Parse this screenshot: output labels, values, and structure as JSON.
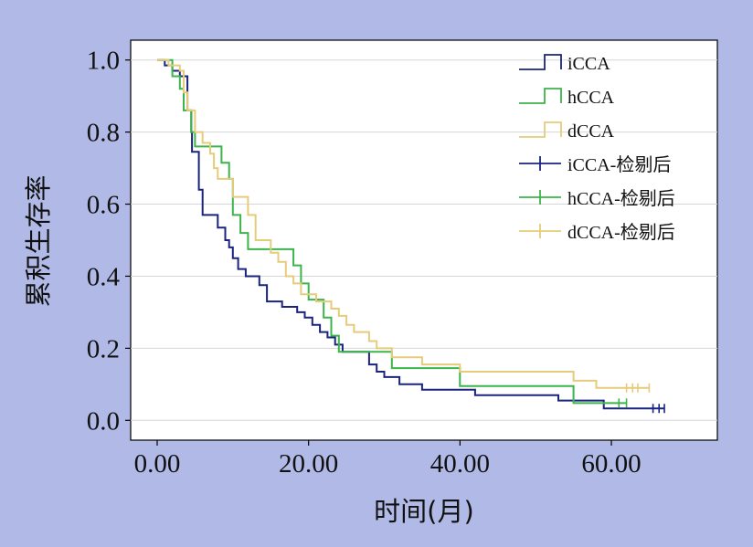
{
  "chart_data": {
    "type": "line",
    "subtype": "kaplan-meier step",
    "title": "",
    "xlabel": "时间(月)",
    "ylabel": "累积生存率",
    "xlim": [
      -3.5,
      74
    ],
    "ylim": [
      -0.055,
      1.055
    ],
    "xticks": [
      "0.00",
      "20.00",
      "40.00",
      "60.00"
    ],
    "xtick_values": [
      0,
      20,
      40,
      60
    ],
    "yticks": [
      "0.0",
      "0.2",
      "0.4",
      "0.6",
      "0.8",
      "1.0"
    ],
    "ytick_values": [
      0,
      0.2,
      0.4,
      0.6,
      0.8,
      1.0
    ],
    "grid": "horizontal",
    "legend_position": "top-right",
    "series": [
      {
        "name": "iCCA",
        "color": "#1a237e",
        "steps": [
          [
            0,
            1.0
          ],
          [
            1,
            1.0
          ],
          [
            1,
            0.985
          ],
          [
            2,
            0.985
          ],
          [
            2,
            0.97
          ],
          [
            3,
            0.97
          ],
          [
            3,
            0.955
          ],
          [
            4,
            0.955
          ],
          [
            4,
            0.86
          ],
          [
            4.5,
            0.86
          ],
          [
            4.5,
            0.8
          ],
          [
            4.6,
            0.8
          ],
          [
            4.6,
            0.745
          ],
          [
            5.5,
            0.745
          ],
          [
            5.5,
            0.64
          ],
          [
            6,
            0.64
          ],
          [
            6,
            0.57
          ],
          [
            8,
            0.57
          ],
          [
            8,
            0.535
          ],
          [
            9,
            0.535
          ],
          [
            9,
            0.5
          ],
          [
            9.5,
            0.5
          ],
          [
            9.5,
            0.48
          ],
          [
            10,
            0.48
          ],
          [
            10,
            0.45
          ],
          [
            10.7,
            0.45
          ],
          [
            10.7,
            0.42
          ],
          [
            11.7,
            0.42
          ],
          [
            11.7,
            0.4
          ],
          [
            13.5,
            0.4
          ],
          [
            13.5,
            0.375
          ],
          [
            14.5,
            0.375
          ],
          [
            14.5,
            0.33
          ],
          [
            16.5,
            0.33
          ],
          [
            16.5,
            0.315
          ],
          [
            18.5,
            0.315
          ],
          [
            18.5,
            0.3
          ],
          [
            19.5,
            0.3
          ],
          [
            19.5,
            0.285
          ],
          [
            20.5,
            0.285
          ],
          [
            20.5,
            0.265
          ],
          [
            21.5,
            0.265
          ],
          [
            21.5,
            0.245
          ],
          [
            22.5,
            0.245
          ],
          [
            22.5,
            0.23
          ],
          [
            23.5,
            0.23
          ],
          [
            23.5,
            0.21
          ],
          [
            24.5,
            0.21
          ],
          [
            24.5,
            0.19
          ],
          [
            28,
            0.19
          ],
          [
            28,
            0.155
          ],
          [
            29,
            0.155
          ],
          [
            29,
            0.135
          ],
          [
            30,
            0.135
          ],
          [
            30,
            0.12
          ],
          [
            32,
            0.12
          ],
          [
            32,
            0.1
          ],
          [
            35,
            0.1
          ],
          [
            35,
            0.085
          ],
          [
            42,
            0.085
          ],
          [
            42,
            0.07
          ],
          [
            53,
            0.07
          ],
          [
            53,
            0.055
          ],
          [
            59,
            0.055
          ],
          [
            59,
            0.033
          ],
          [
            67,
            0.033
          ]
        ],
        "censored": [
          [
            65.5,
            0.033
          ],
          [
            66.3,
            0.033
          ],
          [
            67,
            0.033
          ]
        ]
      },
      {
        "name": "hCCA",
        "color": "#3cb44b",
        "steps": [
          [
            0,
            1.0
          ],
          [
            2,
            1.0
          ],
          [
            2,
            0.955
          ],
          [
            3,
            0.955
          ],
          [
            3,
            0.92
          ],
          [
            3.5,
            0.92
          ],
          [
            3.5,
            0.86
          ],
          [
            4.5,
            0.86
          ],
          [
            4.5,
            0.8
          ],
          [
            5,
            0.8
          ],
          [
            5,
            0.76
          ],
          [
            8.5,
            0.76
          ],
          [
            8.5,
            0.715
          ],
          [
            9.5,
            0.715
          ],
          [
            9.5,
            0.67
          ],
          [
            10,
            0.67
          ],
          [
            10,
            0.57
          ],
          [
            11,
            0.57
          ],
          [
            11,
            0.52
          ],
          [
            12,
            0.52
          ],
          [
            12,
            0.475
          ],
          [
            18,
            0.475
          ],
          [
            18,
            0.43
          ],
          [
            19,
            0.43
          ],
          [
            19,
            0.38
          ],
          [
            20,
            0.38
          ],
          [
            20,
            0.335
          ],
          [
            22,
            0.335
          ],
          [
            22,
            0.285
          ],
          [
            23,
            0.285
          ],
          [
            23,
            0.235
          ],
          [
            24,
            0.235
          ],
          [
            24,
            0.19
          ],
          [
            31,
            0.19
          ],
          [
            31,
            0.145
          ],
          [
            40,
            0.145
          ],
          [
            40,
            0.095
          ],
          [
            55,
            0.095
          ],
          [
            55,
            0.048
          ],
          [
            62,
            0.048
          ]
        ],
        "censored": [
          [
            61,
            0.048
          ],
          [
            62,
            0.048
          ]
        ]
      },
      {
        "name": "dCCA",
        "color": "#e6cc7a",
        "steps": [
          [
            0,
            1.0
          ],
          [
            1.5,
            1.0
          ],
          [
            1.5,
            0.985
          ],
          [
            3,
            0.985
          ],
          [
            3,
            0.97
          ],
          [
            3.5,
            0.97
          ],
          [
            3.5,
            0.91
          ],
          [
            4,
            0.91
          ],
          [
            4,
            0.86
          ],
          [
            5,
            0.86
          ],
          [
            5,
            0.8
          ],
          [
            6,
            0.8
          ],
          [
            6,
            0.77
          ],
          [
            7,
            0.77
          ],
          [
            7,
            0.74
          ],
          [
            7.5,
            0.74
          ],
          [
            7.5,
            0.7
          ],
          [
            8,
            0.7
          ],
          [
            8,
            0.67
          ],
          [
            10,
            0.67
          ],
          [
            10,
            0.62
          ],
          [
            12,
            0.62
          ],
          [
            12,
            0.57
          ],
          [
            13,
            0.57
          ],
          [
            13,
            0.5
          ],
          [
            15,
            0.5
          ],
          [
            15,
            0.465
          ],
          [
            16,
            0.465
          ],
          [
            16,
            0.44
          ],
          [
            17,
            0.44
          ],
          [
            17,
            0.4
          ],
          [
            18,
            0.4
          ],
          [
            18,
            0.38
          ],
          [
            19,
            0.38
          ],
          [
            19,
            0.35
          ],
          [
            21,
            0.35
          ],
          [
            21,
            0.33
          ],
          [
            23,
            0.33
          ],
          [
            23,
            0.31
          ],
          [
            24,
            0.31
          ],
          [
            24,
            0.29
          ],
          [
            25,
            0.29
          ],
          [
            25,
            0.265
          ],
          [
            26,
            0.265
          ],
          [
            26,
            0.245
          ],
          [
            28,
            0.245
          ],
          [
            28,
            0.22
          ],
          [
            29,
            0.22
          ],
          [
            29,
            0.2
          ],
          [
            31,
            0.2
          ],
          [
            31,
            0.175
          ],
          [
            35,
            0.175
          ],
          [
            35,
            0.155
          ],
          [
            40,
            0.155
          ],
          [
            40,
            0.135
          ],
          [
            55,
            0.135
          ],
          [
            55,
            0.11
          ],
          [
            58,
            0.11
          ],
          [
            58,
            0.09
          ],
          [
            65,
            0.09
          ]
        ],
        "censored": [
          [
            62,
            0.09
          ],
          [
            62.8,
            0.09
          ],
          [
            63.5,
            0.09
          ],
          [
            65,
            0.09
          ]
        ]
      }
    ],
    "legend": [
      {
        "label": "iCCA",
        "color": "#1a237e",
        "kind": "step"
      },
      {
        "label": "hCCA",
        "color": "#3cb44b",
        "kind": "step"
      },
      {
        "label": "dCCA",
        "color": "#e6cc7a",
        "kind": "step"
      },
      {
        "label": "iCCA-检剔后",
        "color": "#1a237e",
        "kind": "cross"
      },
      {
        "label": "hCCA-检剔后",
        "color": "#3cb44b",
        "kind": "cross"
      },
      {
        "label": "dCCA-检剔后",
        "color": "#e6cc7a",
        "kind": "cross"
      }
    ]
  }
}
